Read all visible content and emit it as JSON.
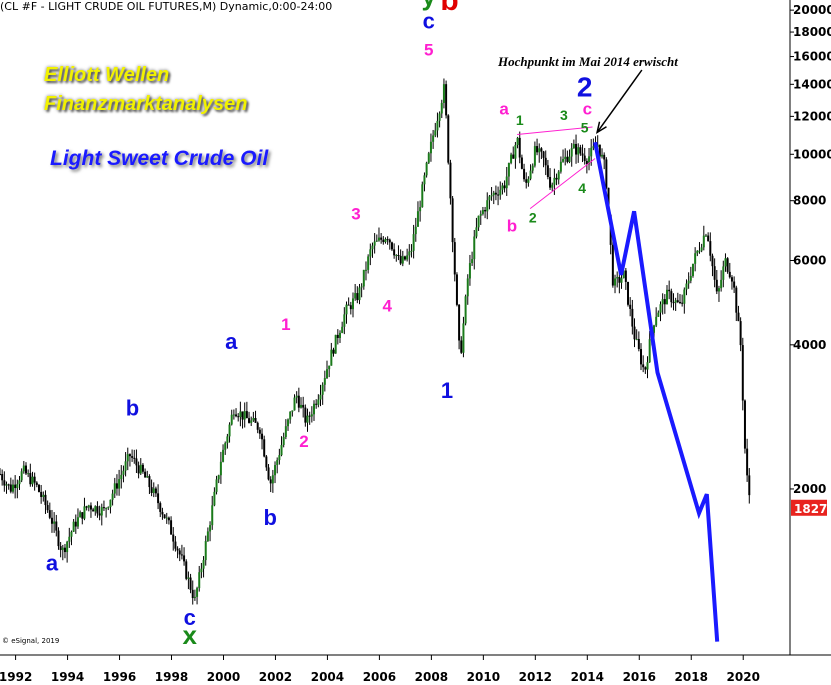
{
  "header": "(CL #F - LIGHT CRUDE OIL FUTURES,M) Dynamic,0:00-24:00",
  "copyright": "© eSignal, 2019",
  "promo": {
    "line1": "Elliott Wellen",
    "line2": "Finanzmarktanalysen",
    "line3": "Light Sweet Crude Oil"
  },
  "annotation": "Hochpunkt im Mai 2014 erwischt",
  "colors": {
    "wave_blue": "#1010e0",
    "wave_magenta": "#ff1fd0",
    "wave_green": "#1a8a1a",
    "wave_red": "#e00000",
    "projection": "#1a1aff",
    "candle": "#000000",
    "price_badge": "#e8241f"
  },
  "chart_data": {
    "type": "candlestick",
    "title": "",
    "xlabel": "",
    "ylabel": "",
    "scale": "log",
    "xlim": [
      1991.4,
      2021.8
    ],
    "ylim": [
      900,
      21000
    ],
    "y_ticks": [
      "20000",
      "18000",
      "16000",
      "14000",
      "12000",
      "10000",
      "8000",
      "6000",
      "4000",
      "2000"
    ],
    "x_ticks": [
      "1992",
      "1994",
      "1996",
      "1998",
      "2000",
      "2002",
      "2004",
      "2006",
      "2008",
      "2010",
      "2012",
      "2014",
      "2016",
      "2018",
      "2020"
    ],
    "last_price": "1827",
    "price_path": [
      [
        1991.4,
        2150
      ],
      [
        1991.8,
        2000
      ],
      [
        1992.3,
        2180
      ],
      [
        1992.8,
        2030
      ],
      [
        1993.3,
        1780
      ],
      [
        1993.8,
        1480
      ],
      [
        1994.3,
        1700
      ],
      [
        1994.8,
        1850
      ],
      [
        1995.4,
        1800
      ],
      [
        1995.9,
        2050
      ],
      [
        1996.4,
        2350
      ],
      [
        1996.9,
        2150
      ],
      [
        1997.4,
        1920
      ],
      [
        1997.9,
        1680
      ],
      [
        1998.4,
        1420
      ],
      [
        1998.9,
        1170
      ],
      [
        1999.4,
        1620
      ],
      [
        1999.9,
        2300
      ],
      [
        2000.4,
        2950
      ],
      [
        2000.9,
        2800
      ],
      [
        2001.4,
        2680
      ],
      [
        2001.8,
        2050
      ],
      [
        2002.3,
        2550
      ],
      [
        2002.8,
        3150
      ],
      [
        2003.2,
        2750
      ],
      [
        2003.7,
        3200
      ],
      [
        2004.2,
        3900
      ],
      [
        2004.7,
        4700
      ],
      [
        2005.2,
        5100
      ],
      [
        2005.7,
        6400
      ],
      [
        2006.3,
        6800
      ],
      [
        2006.8,
        5900
      ],
      [
        2007.2,
        6200
      ],
      [
        2007.7,
        8700
      ],
      [
        2008.1,
        11200
      ],
      [
        2008.5,
        13800
      ],
      [
        2008.8,
        7000
      ],
      [
        2009.1,
        3700
      ],
      [
        2009.4,
        5500
      ],
      [
        2009.8,
        7300
      ],
      [
        2010.3,
        8200
      ],
      [
        2010.8,
        8600
      ],
      [
        2011.3,
        10800
      ],
      [
        2011.6,
        8500
      ],
      [
        2012.0,
        10200
      ],
      [
        2012.3,
        9800
      ],
      [
        2012.6,
        8600
      ],
      [
        2013.0,
        9600
      ],
      [
        2013.5,
        10300
      ],
      [
        2014.0,
        9800
      ],
      [
        2014.4,
        10500
      ],
      [
        2014.7,
        9300
      ],
      [
        2015.0,
        5300
      ],
      [
        2015.4,
        5600
      ],
      [
        2015.8,
        4200
      ],
      [
        2016.2,
        3500
      ],
      [
        2016.6,
        4600
      ],
      [
        2017.1,
        5100
      ],
      [
        2017.6,
        4800
      ],
      [
        2018.1,
        6000
      ],
      [
        2018.6,
        7000
      ],
      [
        2019.0,
        5000
      ],
      [
        2019.3,
        6000
      ],
      [
        2019.6,
        5500
      ],
      [
        2019.9,
        4000
      ],
      [
        2020.1,
        2200
      ],
      [
        2020.3,
        1827
      ]
    ],
    "projection_path": [
      [
        2014.3,
        10600
      ],
      [
        2015.3,
        5600
      ],
      [
        2015.8,
        7600
      ],
      [
        2016.7,
        3500
      ],
      [
        2018.3,
        1780
      ],
      [
        2018.6,
        1950
      ],
      [
        2019.0,
        960
      ]
    ],
    "wave_labels": [
      {
        "text": "a",
        "x": 1993.4,
        "y": 1350,
        "color": "blue"
      },
      {
        "text": "b",
        "x": 1996.5,
        "y": 2850,
        "color": "blue"
      },
      {
        "text": "c",
        "x": 1998.7,
        "y": 1040,
        "color": "blue"
      },
      {
        "text": "x",
        "x": 1998.7,
        "y": 950,
        "color": "green"
      },
      {
        "text": "a",
        "x": 2000.3,
        "y": 3920,
        "color": "blue"
      },
      {
        "text": "b",
        "x": 2001.8,
        "y": 1680,
        "color": "blue"
      },
      {
        "text": "1",
        "x": 2002.4,
        "y": 4300,
        "color": "magenta"
      },
      {
        "text": "2",
        "x": 2003.1,
        "y": 2450,
        "color": "magenta"
      },
      {
        "text": "3",
        "x": 2005.1,
        "y": 7300,
        "color": "magenta"
      },
      {
        "text": "4",
        "x": 2006.3,
        "y": 4700,
        "color": "magenta"
      },
      {
        "text": "5",
        "x": 2007.9,
        "y": 16100,
        "color": "magenta"
      },
      {
        "text": "c",
        "x": 2007.9,
        "y": 18300,
        "color": "blue"
      },
      {
        "text": "y",
        "x": 2007.9,
        "y": 20500,
        "color": "green"
      },
      {
        "text": "b",
        "x": 2008.7,
        "y": 20000,
        "color": "red"
      },
      {
        "text": "1",
        "x": 2008.6,
        "y": 3100,
        "color": "blue"
      },
      {
        "text": "a",
        "x": 2010.8,
        "y": 12100,
        "color": "magenta"
      },
      {
        "text": "b",
        "x": 2011.1,
        "y": 6900,
        "color": "magenta"
      },
      {
        "text": "1",
        "x": 2011.4,
        "y": 11500,
        "color": "green"
      },
      {
        "text": "2",
        "x": 2011.9,
        "y": 7200,
        "color": "green"
      },
      {
        "text": "3",
        "x": 2013.1,
        "y": 11800,
        "color": "green"
      },
      {
        "text": "4",
        "x": 2013.8,
        "y": 8300,
        "color": "green"
      },
      {
        "text": "5",
        "x": 2013.9,
        "y": 11100,
        "color": "green"
      },
      {
        "text": "c",
        "x": 2014.0,
        "y": 12100,
        "color": "magenta"
      },
      {
        "text": "2",
        "x": 2013.9,
        "y": 13200,
        "color": "blue"
      }
    ]
  }
}
